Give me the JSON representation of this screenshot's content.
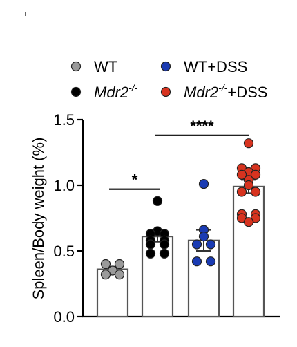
{
  "chart_data": {
    "type": "bar",
    "ylabel": "Spleen/Body weight (%)",
    "ylim": [
      0,
      1.5
    ],
    "yticks": [
      "0.0",
      "0.5",
      "1.0",
      "1.5"
    ],
    "grid": false,
    "legend_position": "top",
    "categories": [
      "WT",
      "Mdr2-/-",
      "WT+DSS",
      "Mdr2-/-+DSS"
    ],
    "legend": [
      {
        "text": "WT",
        "sup": "",
        "tail": "",
        "italic": false,
        "color": "#9a9a9a"
      },
      {
        "text": "WT+DSS",
        "sup": "",
        "tail": "",
        "italic": false,
        "color": "#1a3bb3"
      },
      {
        "text": "Mdr2",
        "sup": "-/-",
        "tail": "",
        "italic": true,
        "color": "#000000"
      },
      {
        "text": "Mdr2",
        "sup": "-/-",
        "tail": "+DSS",
        "italic": true,
        "color": "#d7331f"
      }
    ],
    "groups": [
      {
        "name": "WT",
        "color": "#9a9a9a",
        "mean": 0.36,
        "sem_low": 0.34,
        "sem_high": 0.38,
        "points": [
          0.4,
          0.4,
          0.35,
          0.32,
          0.32
        ]
      },
      {
        "name": "Mdr2-/-",
        "color": "#000000",
        "mean": 0.61,
        "sem_low": 0.57,
        "sem_high": 0.65,
        "points": [
          0.88,
          0.65,
          0.63,
          0.63,
          0.58,
          0.58,
          0.55,
          0.55,
          0.48,
          0.48
        ]
      },
      {
        "name": "WT+DSS",
        "color": "#1a3bb3",
        "mean": 0.58,
        "sem_low": 0.5,
        "sem_high": 0.66,
        "points": [
          1.01,
          0.66,
          0.61,
          0.55,
          0.55,
          0.42,
          0.42
        ]
      },
      {
        "name": "Mdr2-/-+DSS",
        "color": "#d7331f",
        "mean": 0.99,
        "sem_low": 0.94,
        "sem_high": 1.04,
        "points": [
          1.32,
          1.13,
          1.13,
          1.1,
          1.08,
          1.08,
          1.04,
          1.0,
          0.95,
          0.95,
          0.78,
          0.78,
          0.75,
          0.75,
          0.72
        ]
      }
    ],
    "significance": [
      {
        "from": 0,
        "to": 1,
        "y": 0.97,
        "label": "*"
      },
      {
        "from": 1,
        "to": 3,
        "y": 1.38,
        "label": "****"
      }
    ]
  }
}
